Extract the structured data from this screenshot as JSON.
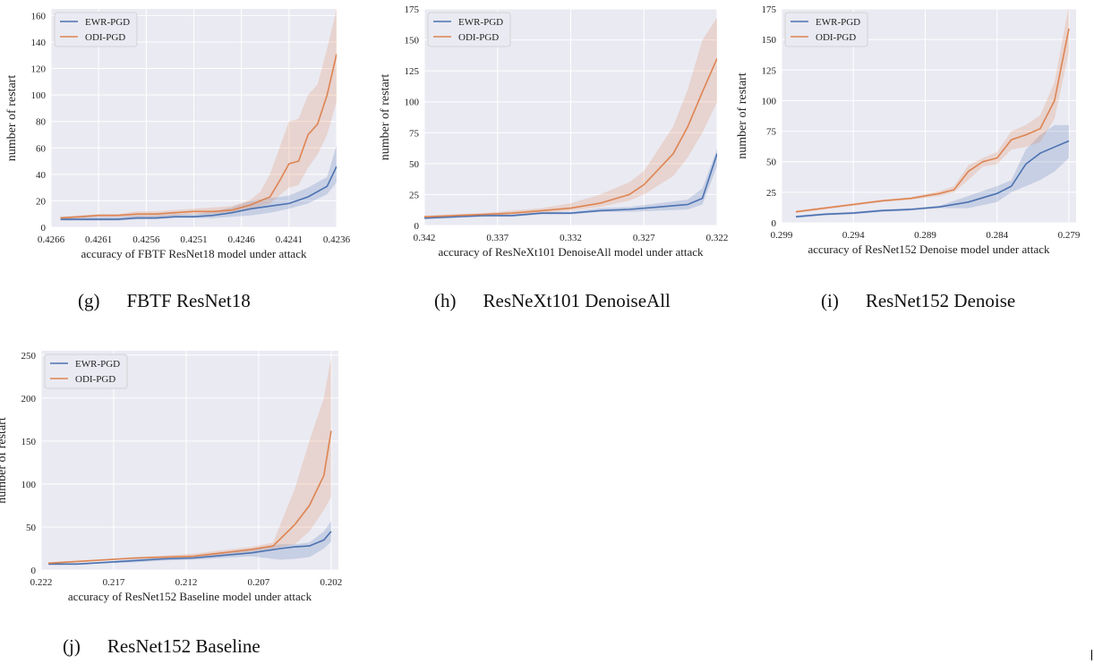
{
  "captions": {
    "g": {
      "tag": "(g)",
      "text": "FBTF ResNet18"
    },
    "h": {
      "tag": "(h)",
      "text": "ResNeXt101 DenoiseAll"
    },
    "i": {
      "tag": "(i)",
      "text": "ResNet152 Denoise"
    },
    "j": {
      "tag": "(j)",
      "text": "ResNet152 Baseline"
    }
  },
  "colors": {
    "ewr": "#4c72b0",
    "odi": "#dd8452",
    "panel_bg": "#eaeaf2",
    "grid": "#ffffff"
  },
  "chart_data": [
    {
      "type": "line",
      "xlabel": "accuracy of FBTF ResNet18 model under attack",
      "ylabel": "number of restart",
      "x_reversed": true,
      "xlim": [
        0.4266,
        0.4236
      ],
      "ylim": [
        0,
        165
      ],
      "xticks": [
        0.4266,
        0.4261,
        0.4256,
        0.4251,
        0.4246,
        0.4241,
        0.4236
      ],
      "yticks": [
        0,
        20,
        40,
        60,
        80,
        100,
        120,
        140,
        160
      ],
      "tick_labels_x": [
        "0.4266",
        "0.4261",
        "0.4256",
        "0.4251",
        "0.4246",
        "0.4241",
        "0.4236"
      ],
      "tick_labels_y": [
        "0",
        "20",
        "40",
        "60",
        "80",
        "100",
        "120",
        "140",
        "160"
      ],
      "grid": true,
      "legend": "top-left",
      "series": [
        {
          "name": "EWR-PGD",
          "color": "#4c72b0",
          "x": [
            0.4265,
            0.4263,
            0.4261,
            0.4259,
            0.4257,
            0.4255,
            0.4253,
            0.4251,
            0.4249,
            0.4247,
            0.4245,
            0.4243,
            0.4241,
            0.4239,
            0.4237,
            0.4236
          ],
          "y": [
            6,
            6,
            6,
            6,
            7,
            7,
            8,
            8,
            9,
            11,
            14,
            16,
            18,
            23,
            31,
            46
          ],
          "lower": [
            5,
            5,
            5,
            5,
            6,
            6,
            7,
            7,
            7,
            8,
            9,
            11,
            14,
            18,
            25,
            34
          ],
          "upper": [
            8,
            8,
            8,
            8,
            9,
            9,
            10,
            10,
            12,
            15,
            20,
            22,
            24,
            30,
            38,
            62
          ]
        },
        {
          "name": "ODI-PGD",
          "color": "#dd8452",
          "x": [
            0.4265,
            0.4263,
            0.4261,
            0.4259,
            0.4257,
            0.4255,
            0.4253,
            0.4251,
            0.4249,
            0.4247,
            0.4245,
            0.4244,
            0.4243,
            0.4242,
            0.4241,
            0.424,
            0.4239,
            0.4238,
            0.4237,
            0.4236
          ],
          "y": [
            7,
            8,
            9,
            9,
            10,
            10,
            11,
            12,
            12,
            13,
            17,
            20,
            23,
            35,
            48,
            50,
            70,
            78,
            100,
            131
          ],
          "lower": [
            6,
            7,
            8,
            8,
            8,
            8,
            9,
            10,
            10,
            11,
            14,
            16,
            18,
            24,
            30,
            32,
            45,
            55,
            70,
            95
          ],
          "upper": [
            8,
            9,
            10,
            10,
            12,
            12,
            13,
            14,
            15,
            16,
            21,
            27,
            40,
            60,
            80,
            82,
            100,
            108,
            135,
            165
          ]
        }
      ]
    },
    {
      "type": "line",
      "xlabel": "accuracy of ResNeXt101 DenoiseAll model under attack",
      "ylabel": "number of restart",
      "x_reversed": true,
      "xlim": [
        0.342,
        0.322
      ],
      "ylim": [
        0,
        175
      ],
      "xticks": [
        0.342,
        0.337,
        0.332,
        0.327,
        0.322
      ],
      "yticks": [
        0,
        25,
        50,
        75,
        100,
        125,
        150,
        175
      ],
      "tick_labels_x": [
        "0.342",
        "0.337",
        "0.332",
        "0.327",
        "0.322"
      ],
      "tick_labels_y": [
        "0",
        "25",
        "50",
        "75",
        "100",
        "125",
        "150",
        "175"
      ],
      "grid": true,
      "legend": "top-left",
      "series": [
        {
          "name": "EWR-PGD",
          "color": "#4c72b0",
          "x": [
            0.342,
            0.34,
            0.338,
            0.336,
            0.334,
            0.332,
            0.33,
            0.328,
            0.326,
            0.324,
            0.323,
            0.322
          ],
          "y": [
            6,
            7,
            8,
            8,
            10,
            10,
            12,
            13,
            15,
            17,
            22,
            58
          ],
          "lower": [
            5,
            6,
            7,
            7,
            9,
            9,
            11,
            11,
            12,
            13,
            17,
            48
          ],
          "upper": [
            7,
            8,
            9,
            9,
            11,
            11,
            14,
            15,
            18,
            21,
            30,
            62
          ]
        },
        {
          "name": "ODI-PGD",
          "color": "#dd8452",
          "x": [
            0.342,
            0.34,
            0.338,
            0.336,
            0.334,
            0.332,
            0.33,
            0.328,
            0.327,
            0.325,
            0.324,
            0.323,
            0.322
          ],
          "y": [
            7,
            8,
            9,
            10,
            12,
            14,
            18,
            25,
            33,
            58,
            80,
            108,
            135
          ],
          "lower": [
            6,
            7,
            8,
            9,
            10,
            12,
            15,
            20,
            25,
            40,
            55,
            75,
            100
          ],
          "upper": [
            8,
            9,
            10,
            12,
            14,
            18,
            25,
            35,
            44,
            80,
            110,
            150,
            168
          ]
        }
      ]
    },
    {
      "type": "line",
      "xlabel": "accuracy of ResNet152 Denoise model under attack",
      "ylabel": "number of restart",
      "x_reversed": true,
      "xlim": [
        0.299,
        0.2785
      ],
      "ylim": [
        0,
        175
      ],
      "xticks": [
        0.299,
        0.294,
        0.289,
        0.284,
        0.279
      ],
      "yticks": [
        0,
        25,
        50,
        75,
        100,
        125,
        150,
        175
      ],
      "tick_labels_x": [
        "0.299",
        "0.294",
        "0.289",
        "0.284",
        "0.279"
      ],
      "tick_labels_y": [
        "0",
        "25",
        "50",
        "75",
        "100",
        "125",
        "150",
        "175"
      ],
      "grid": true,
      "legend": "top-left",
      "series": [
        {
          "name": "EWR-PGD",
          "color": "#4c72b0",
          "x": [
            0.298,
            0.296,
            0.294,
            0.292,
            0.29,
            0.288,
            0.286,
            0.284,
            0.283,
            0.282,
            0.281,
            0.28,
            0.279
          ],
          "y": [
            5,
            7,
            8,
            10,
            11,
            13,
            17,
            24,
            30,
            48,
            57,
            62,
            67
          ],
          "lower": [
            4,
            6,
            7,
            9,
            10,
            12,
            12,
            17,
            25,
            30,
            35,
            42,
            53
          ],
          "upper": [
            6,
            8,
            9,
            11,
            12,
            14,
            22,
            30,
            35,
            60,
            72,
            80,
            80
          ]
        },
        {
          "name": "ODI-PGD",
          "color": "#dd8452",
          "x": [
            0.298,
            0.296,
            0.294,
            0.292,
            0.29,
            0.288,
            0.287,
            0.286,
            0.285,
            0.284,
            0.283,
            0.282,
            0.281,
            0.28,
            0.279
          ],
          "y": [
            9,
            12,
            15,
            18,
            20,
            24,
            27,
            42,
            50,
            53,
            68,
            72,
            77,
            100,
            159
          ],
          "lower": [
            8,
            11,
            14,
            17,
            19,
            22,
            25,
            35,
            46,
            48,
            60,
            62,
            66,
            85,
            140
          ],
          "upper": [
            10,
            13,
            16,
            19,
            21,
            26,
            30,
            47,
            53,
            58,
            75,
            80,
            88,
            115,
            178
          ]
        }
      ]
    },
    {
      "type": "line",
      "xlabel": "accuracy of ResNet152 Baseline model under attack",
      "ylabel": "number of restart",
      "x_reversed": true,
      "xlim": [
        0.222,
        0.2015
      ],
      "ylim": [
        0,
        255
      ],
      "xticks": [
        0.222,
        0.217,
        0.212,
        0.207,
        0.202
      ],
      "yticks": [
        0,
        50,
        100,
        150,
        200,
        250
      ],
      "tick_labels_x": [
        "0.222",
        "0.217",
        "0.212",
        "0.207",
        "0.202"
      ],
      "tick_labels_y": [
        "0",
        "50",
        "100",
        "150",
        "200",
        "250"
      ],
      "grid": true,
      "legend": "top-left",
      "series": [
        {
          "name": "EWR-PGD",
          "color": "#4c72b0",
          "x": [
            0.2215,
            0.2195,
            0.2175,
            0.2155,
            0.2135,
            0.2115,
            0.2095,
            0.2075,
            0.2055,
            0.2045,
            0.2035,
            0.2025,
            0.202
          ],
          "y": [
            7,
            7,
            9,
            11,
            13,
            14,
            17,
            20,
            25,
            27,
            28,
            35,
            45
          ],
          "lower": [
            6,
            6,
            8,
            9,
            11,
            12,
            14,
            16,
            12,
            13,
            15,
            25,
            33
          ],
          "upper": [
            8,
            8,
            10,
            13,
            15,
            16,
            20,
            24,
            30,
            30,
            32,
            45,
            57
          ]
        },
        {
          "name": "ODI-PGD",
          "color": "#dd8452",
          "x": [
            0.2215,
            0.2195,
            0.2175,
            0.2155,
            0.2135,
            0.2115,
            0.2095,
            0.2075,
            0.206,
            0.2045,
            0.2035,
            0.2025,
            0.202
          ],
          "y": [
            8,
            10,
            12,
            14,
            15,
            16,
            20,
            24,
            28,
            53,
            75,
            110,
            162
          ],
          "lower": [
            7,
            9,
            11,
            13,
            14,
            15,
            18,
            21,
            25,
            30,
            45,
            70,
            85
          ],
          "upper": [
            9,
            11,
            13,
            15,
            17,
            19,
            23,
            27,
            32,
            95,
            150,
            200,
            248
          ]
        }
      ]
    }
  ]
}
